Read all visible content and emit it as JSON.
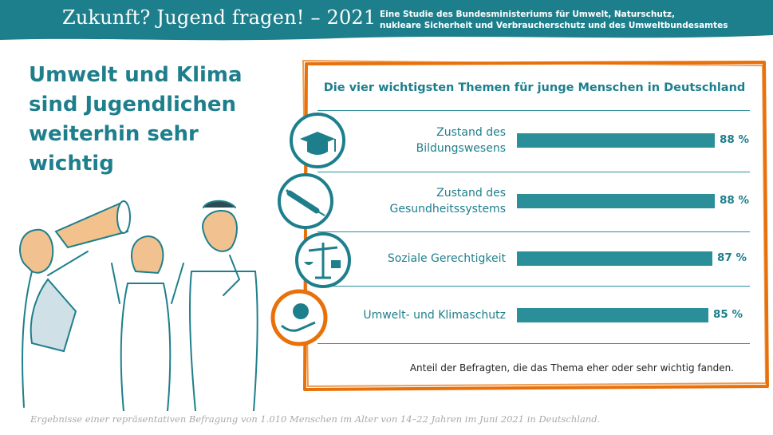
{
  "header": {
    "title": "Zukunft? Jugend fragen! – 2021",
    "subtitle_line1": "Eine Studie des Bundesministeriums für Umwelt, Naturschutz,",
    "subtitle_line2": "nukleare Sicherheit und Verbraucherschutz und des Umweltbundesamtes"
  },
  "headline": "Umwelt und Klima\nsind Jugendlichen\nweiterhin sehr\nwichtig",
  "footnote": "Ergebnisse einer repräsentativen Befragung von 1.010 Menschen im Alter von 14–22 Jahren im Juni 2021 in Deutschland.",
  "colors": {
    "teal": "#1e7f8c",
    "bar": "#2a8f99",
    "orange": "#e8710a"
  },
  "icons": [
    "graduation-cap-icon",
    "syringe-icon",
    "scales-of-justice-icon",
    "globe-in-hand-icon"
  ],
  "chart_data": {
    "type": "bar",
    "orientation": "horizontal",
    "title": "Die vier wichtigsten Themen für junge Menschen in Deutschland",
    "categories": [
      [
        "Zustand des",
        "Bildungswesens"
      ],
      [
        "Zustand des",
        "Gesundheitssystems"
      ],
      [
        "Soziale Gerechtigkeit"
      ],
      [
        "Umwelt- und Klimaschutz"
      ]
    ],
    "values": [
      88,
      88,
      87,
      85
    ],
    "value_labels": [
      "88 %",
      "88 %",
      "87 %",
      "85 %"
    ],
    "note": "Anteil der Befragten, die das Thema eher oder sehr wichtig fanden.",
    "xlim": [
      0,
      100
    ]
  }
}
